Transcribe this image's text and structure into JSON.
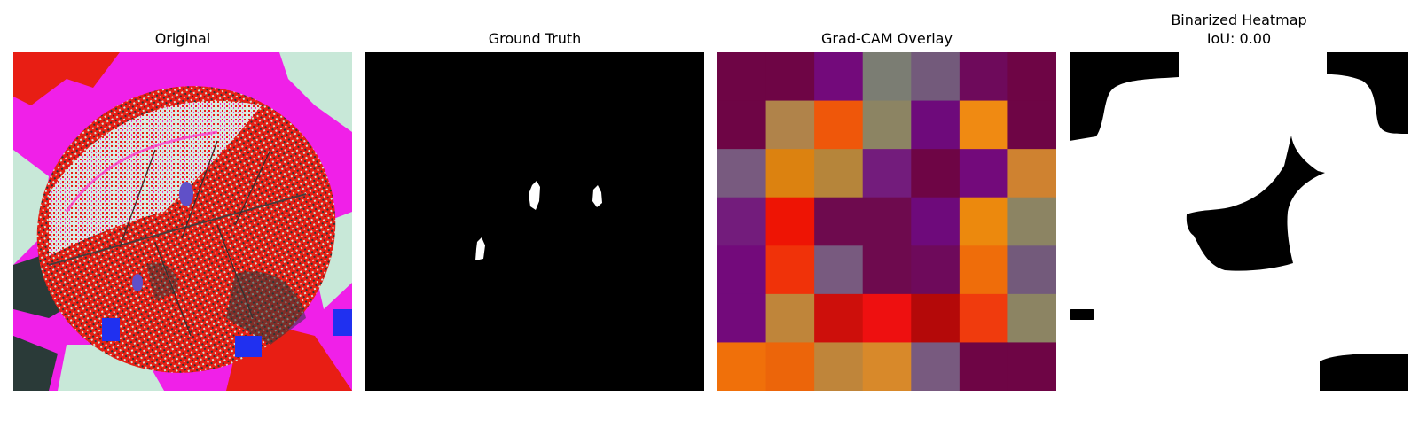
{
  "figure": {
    "panels": [
      {
        "title": "Original",
        "type": "image"
      },
      {
        "title": "Ground Truth",
        "type": "mask"
      },
      {
        "title": "Grad-CAM Overlay",
        "type": "heatmap"
      },
      {
        "title": "Binarized Heatmap",
        "subtitle": "IoU: 0.00",
        "type": "binary-map"
      }
    ]
  },
  "chart_data": {
    "type": "heatmap",
    "title": "Grad-CAM Overlay",
    "rows": 7,
    "cols": 7,
    "cell_colors": [
      [
        "#6e0545",
        "#6e0545",
        "#730a7b",
        "#7b7d73",
        "#735a7b",
        "#6e0a5b",
        "#6e0545"
      ],
      [
        "#6e0545",
        "#b0834a",
        "#ef570a",
        "#8c8463",
        "#6e0a7b",
        "#f08a12",
        "#6e0545"
      ],
      [
        "#785a7f",
        "#dc8210",
        "#b6853a",
        "#731c7c",
        "#6e0545",
        "#730a7b",
        "#cf8230"
      ],
      [
        "#731c7c",
        "#ee1404",
        "#6e0a4e",
        "#6e0a4e",
        "#6e0a7b",
        "#ec890d",
        "#8c8463"
      ],
      [
        "#730a7b",
        "#f03209",
        "#785a7f",
        "#6e0a4e",
        "#6e0a5b",
        "#ef6d0a",
        "#735a7b"
      ],
      [
        "#730a7b",
        "#bf853a",
        "#cd0f0b",
        "#ee1010",
        "#b40909",
        "#f03b0d",
        "#8c8463"
      ],
      [
        "#f0700a",
        "#ec650a",
        "#bf853a",
        "#d8892a",
        "#785a7f",
        "#6e0545",
        "#6e0545"
      ]
    ],
    "iou": 0.0
  }
}
